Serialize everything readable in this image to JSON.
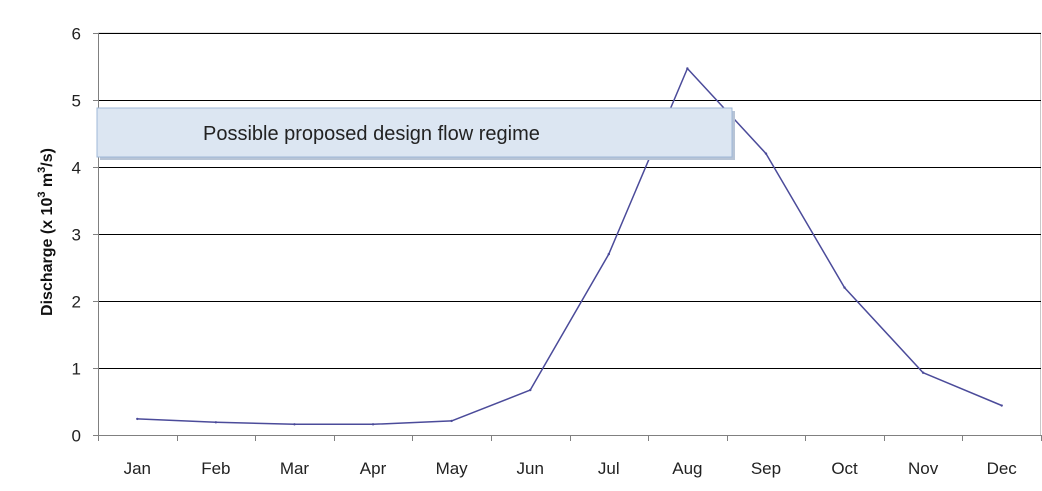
{
  "chart_data": {
    "type": "line",
    "categories": [
      "Jan",
      "Feb",
      "Mar",
      "Apr",
      "May",
      "Jun",
      "Jul",
      "Aug",
      "Sep",
      "Oct",
      "Nov",
      "Dec"
    ],
    "series": [
      {
        "values": [
          0.24,
          0.19,
          0.16,
          0.16,
          0.21,
          0.67,
          2.7,
          5.47,
          4.2,
          2.2,
          0.93,
          0.44
        ],
        "color": "#4b4b9a"
      }
    ],
    "ylabel": "Discharge (x 10³ m³/s)",
    "ylabel_parts": {
      "pre": "Discharge (x 10",
      "sup1": "3",
      "mid": " m",
      "sup2": "3",
      "post": "/s)"
    },
    "ylim": [
      0,
      6
    ],
    "yticks": [
      0,
      1,
      2,
      3,
      4,
      5,
      6
    ],
    "grid": true,
    "annotation": {
      "text": "Possible proposed design flow regime",
      "fill": "#dce6f2",
      "border": "#9fb8d8"
    },
    "colors": {
      "gridline": "#000000",
      "axis": "#808080",
      "plot_border": "#c8c8c8"
    }
  }
}
